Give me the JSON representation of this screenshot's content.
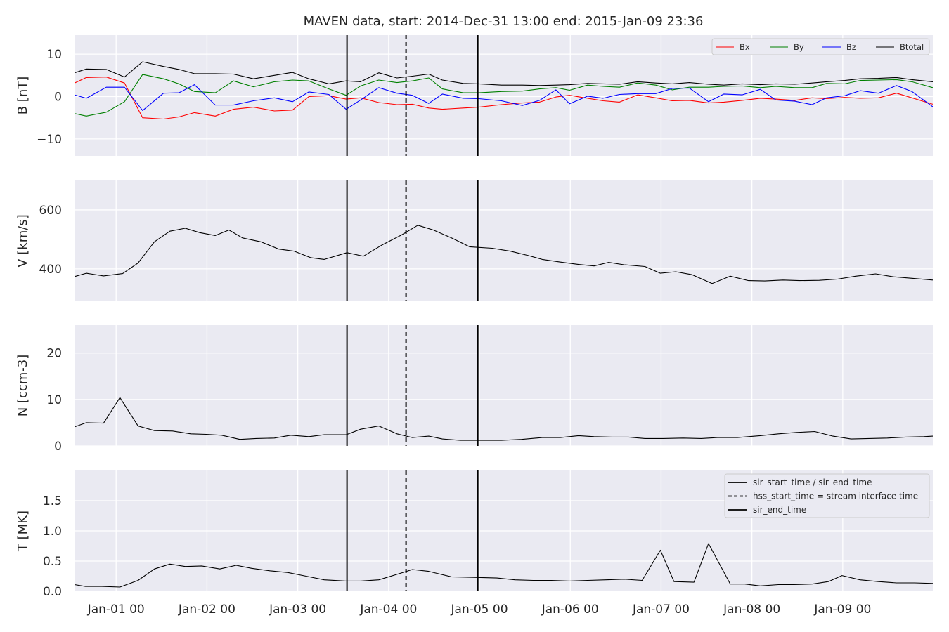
{
  "title": "MAVEN data, start: 2014-Dec-31 13:00  end: 2015-Jan-09 23:36",
  "chart_data": [
    {
      "type": "line",
      "ylabel": "B [nT]",
      "ylim": [
        -14,
        14.5
      ],
      "yticks": [
        -10,
        0,
        10
      ],
      "ytick_labels": [
        "−10",
        "0",
        "10"
      ],
      "x": [
        0,
        0.13,
        0.35,
        0.55,
        0.75,
        0.98,
        1.15,
        1.32,
        1.55,
        1.75,
        1.97,
        2.2,
        2.4,
        2.58,
        2.8,
        2.99,
        3.15,
        3.35,
        3.55,
        3.72,
        3.9,
        4.05,
        4.28,
        4.45,
        4.7,
        4.93,
        5.12,
        5.3,
        5.45,
        5.65,
        5.82,
        6.0,
        6.2,
        6.4,
        6.58,
        6.77,
        6.98,
        7.15,
        7.35,
        7.55,
        7.72,
        7.93,
        8.12,
        8.28,
        8.48,
        8.65,
        8.85,
        9.05,
        9.22,
        9.45
      ],
      "x_unit": "days since 2014-Dec-31 13:00",
      "series": [
        {
          "name": "Bx",
          "color": "#ff0000",
          "values": [
            3.2,
            4.5,
            4.6,
            3.2,
            -5,
            -5.3,
            -4.8,
            -3.8,
            -4.6,
            -3.0,
            -2.5,
            -3.4,
            -3.2,
            0,
            0.2,
            -0.6,
            -0.3,
            -1.4,
            -1.9,
            -1.8,
            -2.7,
            -3.0,
            -2.7,
            -2.5,
            -1.9,
            -1.5,
            -1.3,
            -0.1,
            0.3,
            -0.4,
            -1.0,
            -1.3,
            0.4,
            -0.3,
            -1.0,
            -0.9,
            -1.5,
            -1.3,
            -0.9,
            -0.4,
            -0.6,
            -0.9,
            -0.3,
            -0.5,
            -0.2,
            -0.4,
            -0.3,
            0.8,
            -0.3,
            -1.8
          ]
        },
        {
          "name": "By",
          "color": "#008000",
          "values": [
            -4.0,
            -4.6,
            -3.7,
            -1.2,
            5.2,
            4.2,
            3.0,
            1.2,
            0.9,
            3.7,
            2.3,
            3.5,
            3.9,
            3.7,
            1.8,
            0.3,
            2.5,
            3.9,
            3.3,
            3.7,
            4.4,
            1.8,
            0.9,
            0.9,
            1.2,
            1.3,
            1.8,
            2.1,
            1.5,
            2.7,
            2.4,
            2.2,
            3.2,
            2.7,
            1.6,
            2.2,
            2.2,
            2.4,
            2.5,
            2.1,
            2.4,
            2.1,
            2.1,
            3.1,
            3.0,
            3.8,
            3.9,
            4.0,
            3.5,
            2.1
          ]
        },
        {
          "name": "Bz",
          "color": "#0000ff",
          "values": [
            0.4,
            -0.4,
            2.2,
            2.2,
            -3.3,
            0.8,
            0.9,
            2.8,
            -2.0,
            -2.0,
            -1.0,
            -0.3,
            -1.2,
            1.1,
            0.5,
            -3.0,
            -0.8,
            2.1,
            0.8,
            0.3,
            -1.6,
            0.6,
            -0.4,
            -0.5,
            -1.0,
            -2.1,
            -0.9,
            1.6,
            -1.7,
            0.1,
            -0.4,
            0.5,
            0.7,
            0.7,
            1.9,
            2.0,
            -1.2,
            0.6,
            0.4,
            1.7,
            -0.8,
            -1.1,
            -1.9,
            -0.3,
            0.2,
            1.4,
            0.8,
            2.6,
            1.2,
            -2.4
          ]
        },
        {
          "name": "Btotal",
          "color": "#000000",
          "values": [
            5.6,
            6.5,
            6.4,
            4.6,
            8.2,
            7.1,
            6.4,
            5.4,
            5.4,
            5.3,
            4.2,
            5.0,
            5.7,
            4.2,
            3.0,
            3.7,
            3.5,
            5.6,
            4.4,
            4.8,
            5.3,
            3.9,
            3.1,
            3.0,
            2.7,
            2.7,
            2.6,
            2.7,
            2.8,
            3.1,
            3.0,
            2.9,
            3.5,
            3.2,
            3.0,
            3.3,
            2.9,
            2.7,
            3.0,
            2.8,
            3.0,
            2.9,
            3.2,
            3.5,
            3.8,
            4.2,
            4.3,
            4.5,
            4.0,
            3.5
          ]
        }
      ],
      "legend": "top-right, horizontal"
    },
    {
      "type": "line",
      "ylabel": "V [km/s]",
      "ylim": [
        290,
        700
      ],
      "yticks": [
        400,
        600
      ],
      "ytick_labels": [
        "400",
        "600"
      ],
      "x": [
        0,
        0.13,
        0.32,
        0.53,
        0.7,
        0.88,
        1.05,
        1.22,
        1.38,
        1.55,
        1.7,
        1.85,
        2.05,
        2.25,
        2.42,
        2.6,
        2.75,
        3.0,
        3.18,
        3.38,
        3.6,
        3.78,
        3.95,
        4.15,
        4.35,
        4.6,
        4.8,
        5.0,
        5.15,
        5.35,
        5.55,
        5.72,
        5.88,
        6.05,
        6.28,
        6.45,
        6.62,
        6.8,
        7.02,
        7.22,
        7.42,
        7.6,
        7.8,
        7.98,
        8.2,
        8.4,
        8.6,
        8.82,
        9.02,
        9.22,
        9.45
      ],
      "series": [
        {
          "name": "",
          "color": "#000000",
          "values": [
            374,
            385,
            376,
            384,
            420,
            492,
            528,
            538,
            523,
            513,
            532,
            505,
            492,
            467,
            460,
            438,
            432,
            455,
            443,
            480,
            515,
            548,
            532,
            505,
            475,
            470,
            460,
            445,
            432,
            423,
            415,
            410,
            422,
            414,
            408,
            385,
            390,
            380,
            350,
            375,
            360,
            359,
            362,
            360,
            361,
            365,
            375,
            383,
            373,
            368,
            362
          ]
        }
      ]
    },
    {
      "type": "line",
      "ylabel": "N [ccm-3]",
      "ylim": [
        0,
        26
      ],
      "yticks": [
        0,
        10,
        20
      ],
      "ytick_labels": [
        "0",
        "10",
        "20"
      ],
      "x": [
        0,
        0.13,
        0.32,
        0.5,
        0.7,
        0.88,
        1.08,
        1.28,
        1.45,
        1.62,
        1.82,
        2.0,
        2.2,
        2.38,
        2.58,
        2.75,
        2.99,
        3.15,
        3.35,
        3.55,
        3.72,
        3.9,
        4.05,
        4.25,
        4.45,
        4.7,
        4.92,
        5.15,
        5.35,
        5.55,
        5.72,
        5.92,
        6.1,
        6.28,
        6.48,
        6.7,
        6.9,
        7.08,
        7.3,
        7.55,
        7.75,
        7.95,
        8.15,
        8.35,
        8.55,
        8.75,
        8.95,
        9.15,
        9.35,
        9.45
      ],
      "series": [
        {
          "name": "",
          "color": "#000000",
          "values": [
            4.1,
            5.0,
            4.9,
            10.4,
            4.3,
            3.3,
            3.2,
            2.6,
            2.5,
            2.3,
            1.4,
            1.6,
            1.7,
            2.3,
            2.0,
            2.4,
            2.4,
            3.6,
            4.3,
            2.6,
            1.8,
            2.1,
            1.5,
            1.2,
            1.2,
            1.2,
            1.4,
            1.8,
            1.8,
            2.2,
            2.0,
            1.9,
            1.9,
            1.6,
            1.6,
            1.7,
            1.6,
            1.8,
            1.8,
            2.2,
            2.6,
            2.9,
            3.1,
            2.1,
            1.5,
            1.6,
            1.7,
            1.9,
            2.0,
            2.1
          ]
        }
      ]
    },
    {
      "type": "line",
      "ylabel": "T [MK]",
      "ylim": [
        0,
        2.0
      ],
      "yticks": [
        0.0,
        0.5,
        1.0,
        1.5
      ],
      "ytick_labels": [
        "0.0",
        "0.5",
        "1.0",
        "1.5"
      ],
      "x": [
        0,
        0.12,
        0.3,
        0.5,
        0.7,
        0.88,
        1.05,
        1.22,
        1.4,
        1.6,
        1.78,
        1.95,
        2.15,
        2.35,
        2.55,
        2.75,
        2.99,
        3.15,
        3.35,
        3.55,
        3.72,
        3.9,
        4.15,
        4.4,
        4.65,
        4.85,
        5.05,
        5.25,
        5.45,
        5.65,
        5.85,
        6.05,
        6.25,
        6.45,
        6.6,
        6.82,
        6.98,
        7.22,
        7.38,
        7.55,
        7.75,
        7.92,
        8.12,
        8.3,
        8.45,
        8.65,
        8.85,
        9.05,
        9.25,
        9.45
      ],
      "series": [
        {
          "name": "",
          "color": "#000000",
          "values": [
            0.11,
            0.08,
            0.08,
            0.07,
            0.18,
            0.37,
            0.45,
            0.41,
            0.42,
            0.37,
            0.43,
            0.38,
            0.34,
            0.31,
            0.25,
            0.19,
            0.17,
            0.17,
            0.19,
            0.28,
            0.36,
            0.33,
            0.24,
            0.23,
            0.22,
            0.19,
            0.18,
            0.18,
            0.17,
            0.18,
            0.19,
            0.2,
            0.18,
            0.68,
            0.16,
            0.15,
            0.79,
            0.12,
            0.12,
            0.09,
            0.11,
            0.11,
            0.12,
            0.16,
            0.26,
            0.19,
            0.16,
            0.14,
            0.14,
            0.13
          ]
        }
      ]
    }
  ],
  "x_ticks": [
    "Jan-01 00",
    "Jan-02 00",
    "Jan-03 00",
    "Jan-04 00",
    "Jan-05 00",
    "Jan-06 00",
    "Jan-07 00",
    "Jan-08 00",
    "Jan-09 00"
  ],
  "x_tick_values": [
    0.4583,
    1.4583,
    2.4583,
    3.4583,
    4.4583,
    5.4583,
    6.4583,
    7.4583,
    8.4583
  ],
  "x_range": [
    0,
    9.45
  ],
  "vertical_lines": [
    {
      "x": 3.0,
      "style": "solid"
    },
    {
      "x": 3.65,
      "style": "dashed"
    },
    {
      "x": 4.44,
      "style": "solid"
    }
  ],
  "legend_bottom": {
    "placement": "top-right",
    "entries": [
      {
        "label": "sir_start_time / sir_end_time",
        "style": "solid"
      },
      {
        "label": "hss_start_time = stream interface time",
        "style": "dashed"
      },
      {
        "label": "sir_end_time",
        "style": "solid"
      }
    ]
  },
  "colors": {
    "panel_bg": "#eaeaf2",
    "grid": "#ffffff",
    "text": "#262626"
  }
}
